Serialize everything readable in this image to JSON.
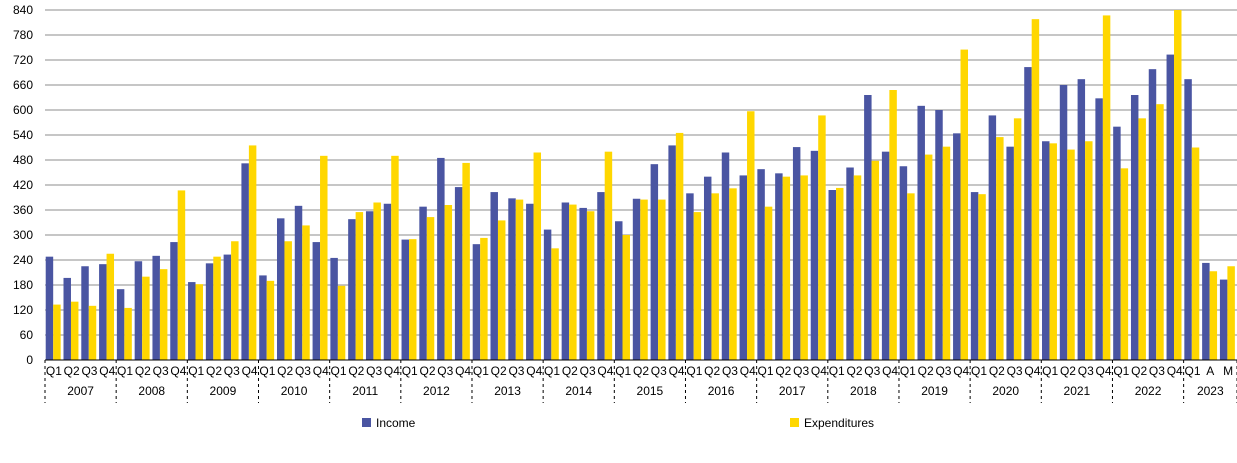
{
  "chart_data": {
    "type": "bar",
    "title": "",
    "xlabel": "",
    "ylabel": "",
    "ylim": [
      0,
      840
    ],
    "yticks": [
      0,
      60,
      120,
      180,
      240,
      300,
      360,
      420,
      480,
      540,
      600,
      660,
      720,
      780,
      840
    ],
    "grid": true,
    "legend_position": "bottom",
    "categories": [
      "Q1",
      "Q2",
      "Q3",
      "Q4",
      "Q1",
      "Q2",
      "Q3",
      "Q4",
      "Q1",
      "Q2",
      "Q3",
      "Q4",
      "Q1",
      "Q2",
      "Q3",
      "Q4",
      "Q1",
      "Q2",
      "Q3",
      "Q4",
      "Q1",
      "Q2",
      "Q3",
      "Q4",
      "Q1",
      "Q2",
      "Q3",
      "Q4",
      "Q1",
      "Q2",
      "Q3",
      "Q4",
      "Q1",
      "Q2",
      "Q3",
      "Q4",
      "Q1",
      "Q2",
      "Q3",
      "Q4",
      "Q1",
      "Q2",
      "Q3",
      "Q4",
      "Q1",
      "Q2",
      "Q3",
      "Q4",
      "Q1",
      "Q2",
      "Q3",
      "Q4",
      "Q1",
      "Q2",
      "Q3",
      "Q4",
      "Q1",
      "Q2",
      "Q3",
      "Q4",
      "Q1",
      "Q2",
      "Q3",
      "Q4",
      "Q1",
      "A",
      "M"
    ],
    "groups": [
      {
        "label": "2007",
        "count": 4
      },
      {
        "label": "2008",
        "count": 4
      },
      {
        "label": "2009",
        "count": 4
      },
      {
        "label": "2010",
        "count": 4
      },
      {
        "label": "2011",
        "count": 4
      },
      {
        "label": "2012",
        "count": 4
      },
      {
        "label": "2013",
        "count": 4
      },
      {
        "label": "2014",
        "count": 4
      },
      {
        "label": "2015",
        "count": 4
      },
      {
        "label": "2016",
        "count": 4
      },
      {
        "label": "2017",
        "count": 4
      },
      {
        "label": "2018",
        "count": 4
      },
      {
        "label": "2019",
        "count": 4
      },
      {
        "label": "2020",
        "count": 4
      },
      {
        "label": "2021",
        "count": 4
      },
      {
        "label": "2022",
        "count": 4
      },
      {
        "label": "2023",
        "count": 3
      }
    ],
    "series": [
      {
        "name": "Income",
        "color": "#4a55a2",
        "values": [
          248,
          197,
          225,
          230,
          170,
          237,
          250,
          283,
          187,
          232,
          253,
          472,
          203,
          340,
          370,
          283,
          245,
          338,
          357,
          375,
          289,
          368,
          485,
          415,
          278,
          403,
          388,
          375,
          313,
          378,
          365,
          403,
          333,
          387,
          470,
          515,
          400,
          440,
          498,
          443,
          458,
          448,
          511,
          502,
          408,
          462,
          636,
          500,
          465,
          610,
          600,
          544,
          403,
          587,
          512,
          703,
          525,
          660,
          674,
          628,
          560,
          636,
          698,
          733,
          674,
          233,
          193
        ]
      },
      {
        "name": "Expenditures",
        "color": "#ffd700",
        "values": [
          133,
          140,
          130,
          255,
          125,
          200,
          218,
          407,
          182,
          248,
          285,
          515,
          190,
          285,
          323,
          490,
          178,
          355,
          378,
          490,
          290,
          343,
          372,
          473,
          293,
          335,
          385,
          498,
          268,
          373,
          357,
          500,
          300,
          385,
          385,
          545,
          355,
          400,
          412,
          597,
          368,
          440,
          443,
          587,
          413,
          443,
          478,
          648,
          400,
          493,
          512,
          745,
          398,
          535,
          580,
          818,
          520,
          505,
          525,
          827,
          460,
          580,
          614,
          840,
          510,
          213,
          225
        ]
      }
    ]
  }
}
